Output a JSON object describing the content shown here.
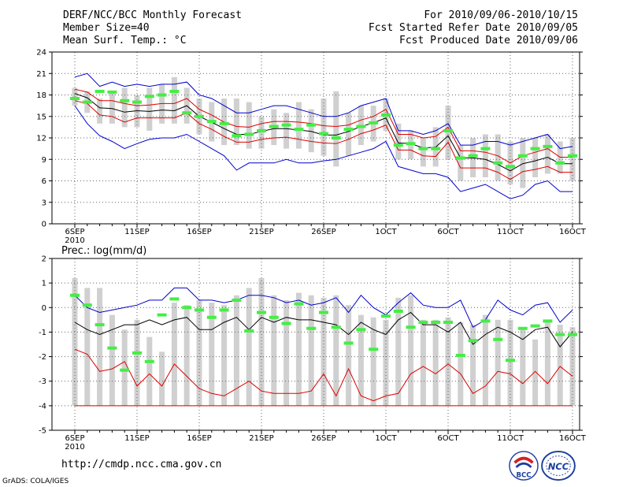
{
  "header": {
    "title": "DERF/NCC/BCC Monthly Forecast",
    "member_size": "Member Size=40",
    "variable1": "Mean Surf. Temp.: °C",
    "period": "For 2010/09/06-2010/10/15",
    "started": "Fcst Started Refer Date 2010/09/05",
    "produced": "Fcst Produced Date 2010/09/06"
  },
  "footer": {
    "url": "http://cmdp.ncc.cma.gov.cn",
    "grads": "GrADS: COLA/IGES",
    "logo1_text": "BCC",
    "logo2_text": "NCC"
  },
  "colors": {
    "envelope": "#0000cc",
    "spread": "#dd0000",
    "mean": "#000000",
    "obs": "#44ee44",
    "box": "#d0d0d0",
    "grid": "#666666"
  },
  "chart_data": [
    {
      "type": "line",
      "title": "Mean Surf. Temp.: °C",
      "x_ticks": [
        "6SEP",
        "11SEP",
        "16SEP",
        "21SEP",
        "26SEP",
        "1OCT",
        "6OCT",
        "11OCT",
        "16OCT"
      ],
      "x_tick_days": [
        0,
        5,
        10,
        15,
        20,
        25,
        30,
        35,
        40
      ],
      "year_label": "2010",
      "ylim": [
        0,
        24
      ],
      "y_ticks": [
        0,
        3,
        6,
        9,
        12,
        15,
        18,
        21,
        24
      ],
      "days": 40,
      "series": [
        {
          "name": "max",
          "values": [
            20.5,
            21,
            19.2,
            19.8,
            19.2,
            19.5,
            19.2,
            19.5,
            19.5,
            19.8,
            18,
            17.5,
            16.5,
            15.5,
            15.5,
            16,
            16.5,
            16.5,
            16,
            15.5,
            15,
            15,
            15.5,
            16.5,
            17,
            17.5,
            13,
            13,
            12.5,
            13,
            14,
            11,
            11,
            11.5,
            11.5,
            11,
            11.5,
            12,
            12.5,
            10.5,
            10.8
          ]
        },
        {
          "name": "upper",
          "values": [
            18.8,
            18.4,
            17.2,
            17.2,
            16.8,
            16.5,
            16.6,
            16.8,
            16.8,
            17.5,
            16,
            15.2,
            14.2,
            13.6,
            13.5,
            14,
            14.3,
            14.3,
            14.2,
            14,
            13.7,
            13.6,
            13.8,
            14.5,
            15,
            16,
            12.5,
            12.5,
            12,
            12.2,
            13.5,
            10.2,
            10.2,
            10,
            9.5,
            8.5,
            9.5,
            10,
            10.5,
            9.3,
            9.3
          ]
        },
        {
          "name": "mean",
          "values": [
            18.2,
            17.6,
            16.2,
            16.1,
            15.6,
            15.8,
            15.7,
            15.9,
            15.8,
            16.5,
            15,
            14.2,
            13.3,
            12.5,
            12.5,
            12.9,
            13.3,
            13.3,
            13.1,
            12.9,
            12.4,
            12.4,
            12.9,
            13.6,
            14.1,
            14.8,
            11.3,
            11.2,
            10.6,
            10.7,
            12.3,
            9.2,
            9.2,
            9,
            8.3,
            7.4,
            8.4,
            8.8,
            9.3,
            8.4,
            8.4
          ]
        },
        {
          "name": "lower",
          "values": [
            17.2,
            16.8,
            15.2,
            15,
            14.2,
            14.8,
            14.8,
            14.8,
            14.8,
            15.5,
            14,
            13.2,
            12.2,
            11.4,
            11.4,
            11.8,
            12,
            12.1,
            11.8,
            11.5,
            11.3,
            11.2,
            11.8,
            12.6,
            13.1,
            13.8,
            10.3,
            10.3,
            9.5,
            9.4,
            11.4,
            7.8,
            7.8,
            7.8,
            7.2,
            6.2,
            7.3,
            7.6,
            8,
            7.2,
            7.2
          ]
        },
        {
          "name": "min",
          "values": [
            16.5,
            14,
            12.3,
            11.5,
            10.5,
            11.2,
            11.8,
            12,
            12,
            12.5,
            11.5,
            10.5,
            9.5,
            7.5,
            8.5,
            8.5,
            8.5,
            9,
            8.5,
            8.5,
            8.8,
            9,
            9.5,
            10,
            10.5,
            11.5,
            8,
            7.5,
            7,
            7,
            6.5,
            4.5,
            5,
            5.5,
            4.5,
            3.5,
            4,
            5.5,
            6,
            4.5,
            4.5
          ]
        }
      ],
      "boxes_low": [
        16.5,
        15.5,
        14,
        14,
        13.5,
        13.5,
        13,
        14,
        14,
        14,
        12.5,
        11.5,
        11,
        11,
        10.5,
        10.5,
        11,
        10.5,
        10.5,
        10,
        9.5,
        8,
        9.5,
        11,
        11.5,
        13,
        9,
        9,
        8,
        8,
        9,
        6,
        6.5,
        6.5,
        6,
        5.5,
        5,
        6.5,
        7,
        7,
        6
      ],
      "boxes_high": [
        19,
        18.5,
        17.5,
        18.5,
        19,
        18,
        19,
        19.5,
        20.5,
        19,
        17.5,
        17,
        17.5,
        17.5,
        17,
        15,
        16,
        15.5,
        17,
        16,
        17.5,
        18.5,
        15.5,
        16.5,
        16.5,
        17.5,
        14,
        13,
        12,
        13.5,
        16.5,
        11,
        12,
        12.5,
        12.5,
        11.5,
        12,
        12,
        12.5,
        11.5,
        12
      ],
      "obs": [
        17.5,
        17,
        18.5,
        18.4,
        17.2,
        17,
        17.8,
        18,
        18.5,
        15.5,
        15,
        14.3,
        14,
        12.3,
        12.5,
        13,
        13.6,
        13.8,
        13.2,
        13.8,
        12.6,
        12,
        13.2,
        13.6,
        14.1,
        15.2,
        11,
        11.2,
        10.5,
        10.5,
        13,
        9.2,
        9.5,
        10.5,
        8.5,
        8,
        9.5,
        10.5,
        10.8,
        8.5,
        9.5
      ]
    },
    {
      "type": "line",
      "title": "Prec.: log(mm/d)",
      "x_ticks": [
        "6SEP",
        "11SEP",
        "16SEP",
        "21SEP",
        "26SEP",
        "1OCT",
        "6OCT",
        "11OCT",
        "16OCT"
      ],
      "x_tick_days": [
        0,
        5,
        10,
        15,
        20,
        25,
        30,
        35,
        40
      ],
      "year_label": "2010",
      "ylim": [
        -5,
        2
      ],
      "y_ticks": [
        -5,
        -4,
        -3,
        -2,
        -1,
        0,
        1,
        2
      ],
      "days": 40,
      "series": [
        {
          "name": "max",
          "values": [
            0.5,
            0,
            -0.2,
            -0.1,
            0,
            0.1,
            0.3,
            0.3,
            0.8,
            0.8,
            0.3,
            0.3,
            0.2,
            0.3,
            0.5,
            0.5,
            0.4,
            0.2,
            0.3,
            0.1,
            0.2,
            0.4,
            -0.2,
            0.5,
            0,
            -0.3,
            0.2,
            0.6,
            0.1,
            0,
            0,
            0.3,
            -0.8,
            -0.5,
            0.3,
            -0.1,
            -0.3,
            0.1,
            0.2,
            -0.6,
            -0.1
          ]
        },
        {
          "name": "mean",
          "values": [
            -0.6,
            -0.9,
            -1.1,
            -0.9,
            -0.7,
            -0.7,
            -0.5,
            -0.7,
            -0.5,
            -0.4,
            -0.9,
            -0.9,
            -0.6,
            -0.4,
            -0.9,
            -0.4,
            -0.6,
            -0.4,
            -0.5,
            -0.5,
            -0.6,
            -0.7,
            -1.1,
            -0.6,
            -0.9,
            -1.1,
            -0.5,
            -0.2,
            -0.7,
            -0.7,
            -1,
            -0.6,
            -1.5,
            -1.1,
            -0.8,
            -1,
            -1.3,
            -0.9,
            -0.8,
            -1.6,
            -1
          ]
        },
        {
          "name": "min",
          "values": [
            -1.7,
            -1.9,
            -2.6,
            -2.5,
            -2.2,
            -3.2,
            -2.7,
            -3.2,
            -2.3,
            -2.8,
            -3.3,
            -3.5,
            -3.6,
            -3.3,
            -3,
            -3.4,
            -3.5,
            -3.5,
            -3.5,
            -3.4,
            -2.7,
            -3.6,
            -2.5,
            -3.6,
            -3.8,
            -3.6,
            -3.5,
            -2.7,
            -2.4,
            -2.7,
            -2.3,
            -2.7,
            -3.5,
            -3.2,
            -2.6,
            -2.7,
            -3.1,
            -2.6,
            -3.1,
            -2.4,
            -2.8
          ]
        }
      ],
      "floor": -4,
      "boxes_low": [
        -4,
        -4,
        -4,
        -4,
        -4,
        -4,
        -4,
        -4,
        -4,
        -4,
        -4,
        -4,
        -4,
        -4,
        -4,
        -4,
        -4,
        -4,
        -4,
        -4,
        -4,
        -4,
        -4,
        -4,
        -4,
        -4,
        -4,
        -4,
        -4,
        -4,
        -4,
        -4,
        -4,
        -4,
        -4,
        -4,
        -4,
        -4,
        -4,
        -4,
        -4
      ],
      "boxes_high": [
        1.2,
        0.8,
        0.8,
        -0.3,
        -0.9,
        -0.5,
        -1.2,
        -1.8,
        0.2,
        0.1,
        0.3,
        0.2,
        0.1,
        0.5,
        0.8,
        1.2,
        0.5,
        0.3,
        0.6,
        0.5,
        0.4,
        0.5,
        0.1,
        -0.3,
        -0.4,
        -0.5,
        0.4,
        0.5,
        -0.5,
        -0.5,
        -0.4,
        -0.6,
        -0.7,
        -0.3,
        -0.5,
        -0.5,
        -0.8,
        -1.3,
        -0.5,
        -0.7,
        -0.8
      ],
      "obs": [
        0.5,
        0.1,
        -0.7,
        -1.65,
        -2.55,
        -1.85,
        -2.2,
        -0.3,
        0.35,
        0,
        -0.1,
        -0.4,
        -0.1,
        0.3,
        -0.95,
        -0.2,
        -0.4,
        -0.65,
        0.15,
        -0.85,
        -0.2,
        -0.8,
        -1.45,
        -0.9,
        -1.7,
        -0.35,
        -0.15,
        -0.8,
        -0.6,
        -0.6,
        -0.6,
        -1.95,
        -1.35,
        -0.55,
        -1.3,
        -2.15,
        -0.85,
        -0.75,
        -0.55,
        -1.1,
        -1.1
      ]
    }
  ]
}
